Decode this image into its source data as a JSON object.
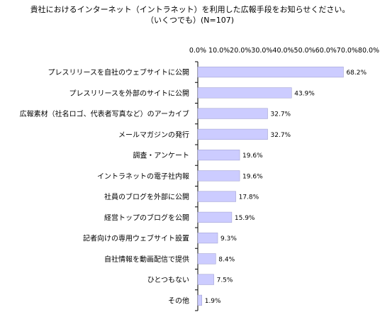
{
  "chart_data": {
    "type": "bar",
    "orientation": "horizontal",
    "title": "貴社におけるインターネット（イントラネット）を利用した広報手段をお知らせください。",
    "subtitle": "（いくつでも）(N=107)",
    "xlim": [
      0,
      80
    ],
    "tick_labels": [
      "0.0%",
      "10.0%",
      "20.0%",
      "30.0%",
      "40.0%",
      "50.0%",
      "60.0%",
      "70.0%",
      "80.0%"
    ],
    "categories": [
      "プレスリリースを自社のウェブサイトに公開",
      "プレスリリースを外部のサイトに公開",
      "広報素材（社名ロゴ、代表者写真など）のアーカイブ",
      "メールマガジンの発行",
      "調査・アンケート",
      "イントラネットの電子社内報",
      "社員のブログを外部に公開",
      "経営トップのブログを公開",
      "記者向けの専用ウェブサイト設置",
      "自社情報を動画配信で提供",
      "ひとつもない",
      "その他"
    ],
    "values": [
      68.2,
      43.9,
      32.7,
      32.7,
      19.6,
      19.6,
      17.8,
      15.9,
      9.3,
      8.4,
      7.5,
      1.9
    ],
    "data_labels": [
      "68.2%",
      "43.9%",
      "32.7%",
      "32.7%",
      "19.6%",
      "19.6%",
      "17.8%",
      "15.9%",
      "9.3%",
      "8.4%",
      "7.5%",
      "1.9%"
    ],
    "bar_color": "#ccccff",
    "bar_border": "#9999cc",
    "grid": false,
    "legend": "none"
  }
}
